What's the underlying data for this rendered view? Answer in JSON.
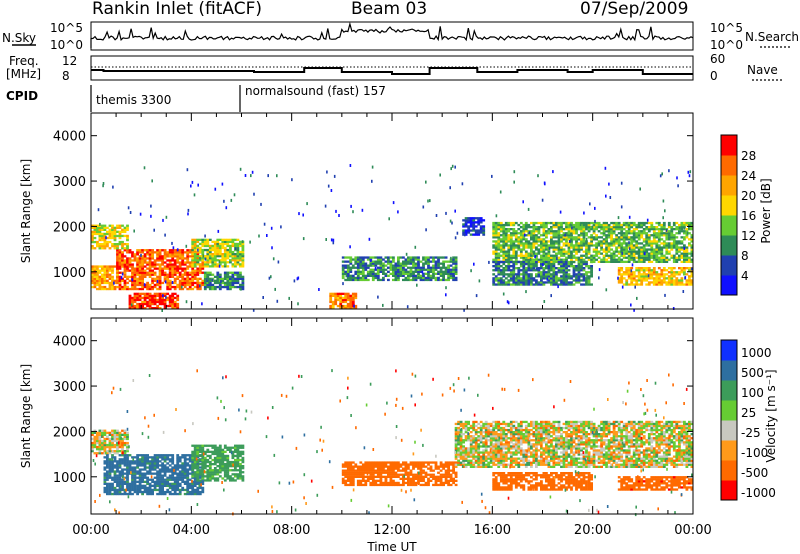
{
  "header": {
    "station": "Rankin Inlet (fitACF)",
    "beam": "Beam 03",
    "date": "07/Sep/2009"
  },
  "strips": {
    "nsky_label": "N.Sky",
    "nsky_ticks": [
      "10^5",
      "10^0"
    ],
    "nsearch_label": "N.Search",
    "nsearch_ticks": [
      "10^5",
      "10^0"
    ],
    "freq_label_1": "Freq.",
    "freq_label_2": "[MHz]",
    "freq_ticks": [
      "12",
      "8"
    ],
    "nave_label": "Nave",
    "nave_ticks": [
      "60",
      "0"
    ],
    "cpid_label": "CPID",
    "cpid_segments": [
      {
        "name": "themis 3300",
        "start": "00:00",
        "end": "06:05"
      },
      {
        "name": "normalsound (fast) 157",
        "start": "06:05",
        "end": "24:00"
      }
    ]
  },
  "chart_data": [
    {
      "type": "heatmap",
      "panel": "power",
      "xlabel": "",
      "ylabel": "Slant Range [km]",
      "x_ticks": [
        "00:00",
        "04:00",
        "08:00",
        "12:00",
        "16:00",
        "20:00",
        "00:00"
      ],
      "y_ticks": [
        "1000",
        "2000",
        "3000",
        "4000"
      ],
      "ylim": [
        180,
        4500
      ],
      "colorbar_label": "Power [dB]",
      "colorbar_ticks": [
        "4",
        "8",
        "12",
        "16",
        "20",
        "24",
        "28"
      ],
      "colorbar_colors": [
        "#1010ff",
        "#2040b0",
        "#2e8b57",
        "#66cc33",
        "#ffd700",
        "#ffa500",
        "#ff6a00",
        "#ff0000"
      ],
      "echo_regions": [
        {
          "t0": 0.0,
          "t1": 1.0,
          "r0": 600,
          "r1": 1100,
          "value": 22
        },
        {
          "t0": 1.0,
          "t1": 4.5,
          "r0": 600,
          "r1": 1500,
          "value": 26
        },
        {
          "t0": 1.5,
          "t1": 3.5,
          "r0": 180,
          "r1": 500,
          "value": 28
        },
        {
          "t0": 0.0,
          "t1": 1.5,
          "r0": 1500,
          "r1": 2000,
          "value": 18
        },
        {
          "t0": 4.0,
          "t1": 6.0,
          "r0": 1100,
          "r1": 1700,
          "value": 16
        },
        {
          "t0": 4.5,
          "t1": 6.0,
          "r0": 600,
          "r1": 1000,
          "value": 10
        },
        {
          "t0": 10.0,
          "t1": 14.5,
          "r0": 800,
          "r1": 1300,
          "value": 10
        },
        {
          "t0": 9.5,
          "t1": 10.5,
          "r0": 180,
          "r1": 500,
          "value": 24
        },
        {
          "t0": 14.8,
          "t1": 15.6,
          "r0": 1800,
          "r1": 2200,
          "value": 6
        },
        {
          "t0": 16.0,
          "t1": 24.0,
          "r0": 1200,
          "r1": 2100,
          "value": 13
        },
        {
          "t0": 16.0,
          "t1": 20.0,
          "r0": 700,
          "r1": 1200,
          "value": 9
        },
        {
          "t0": 21.0,
          "t1": 24.0,
          "r0": 700,
          "r1": 1100,
          "value": 20
        }
      ]
    },
    {
      "type": "heatmap",
      "panel": "velocity",
      "xlabel": "Time UT",
      "ylabel": "Slant Range [km]",
      "x_ticks": [
        "00:00",
        "04:00",
        "08:00",
        "12:00",
        "16:00",
        "20:00",
        "00:00"
      ],
      "y_ticks": [
        "1000",
        "2000",
        "3000",
        "4000"
      ],
      "ylim": [
        180,
        4500
      ],
      "colorbar_label": "Velocity [m s⁻¹]",
      "colorbar_ticks": [
        "1000",
        "500",
        "100",
        "25",
        "-25",
        "-100",
        "-500",
        "-1000"
      ],
      "colorbar_colors": [
        "#1030ff",
        "#2e6fa0",
        "#3c9c5a",
        "#66cc33",
        "#c8c8c0",
        "#ff9a1a",
        "#ff6a00",
        "#ff0000"
      ],
      "echo_regions": [
        {
          "t0": 0.0,
          "t1": 1.5,
          "r0": 1500,
          "r1": 2000,
          "value": 0
        },
        {
          "t0": 0.5,
          "t1": 4.5,
          "r0": 600,
          "r1": 1500,
          "value": 600
        },
        {
          "t0": 4.0,
          "t1": 6.0,
          "r0": 900,
          "r1": 1700,
          "value": 200
        },
        {
          "t0": 10.0,
          "t1": 14.5,
          "r0": 800,
          "r1": 1300,
          "value": -300
        },
        {
          "t0": 14.5,
          "t1": 24.0,
          "r0": 1200,
          "r1": 2200,
          "value": 0
        },
        {
          "t0": 16.0,
          "t1": 20.0,
          "r0": 700,
          "r1": 1100,
          "value": -300
        },
        {
          "t0": 21.0,
          "t1": 24.0,
          "r0": 700,
          "r1": 1000,
          "value": -400
        }
      ]
    }
  ]
}
